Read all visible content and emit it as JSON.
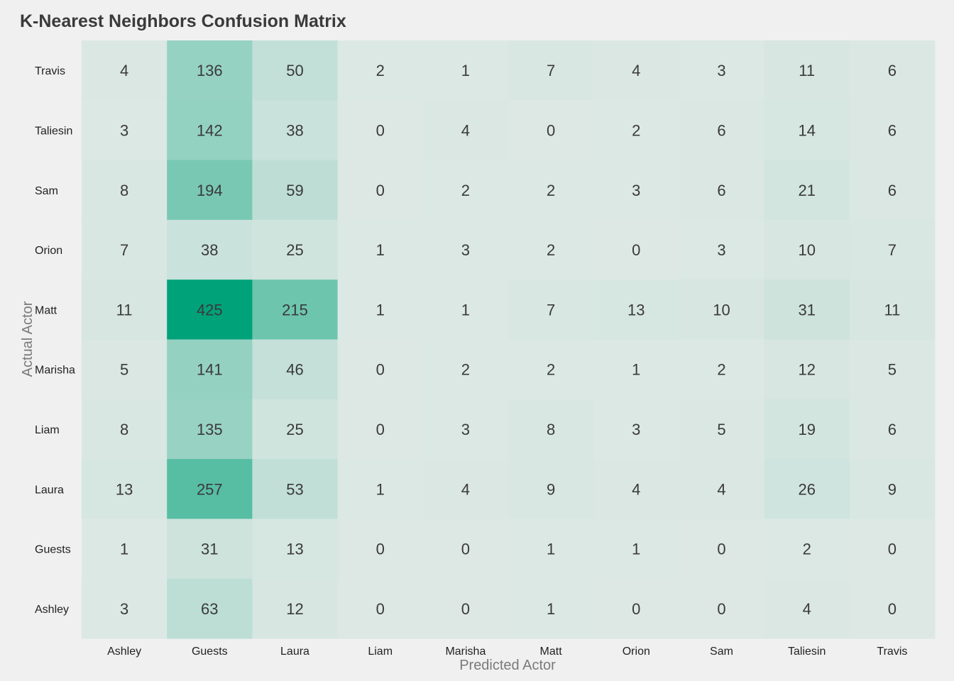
{
  "chart_data": {
    "type": "heatmap",
    "title": "K-Nearest Neighbors Confusion Matrix",
    "xlabel": "Predicted Actor",
    "ylabel": "Actual Actor",
    "x_categories": [
      "Ashley",
      "Guests",
      "Laura",
      "Liam",
      "Marisha",
      "Matt",
      "Orion",
      "Sam",
      "Taliesin",
      "Travis"
    ],
    "y_categories": [
      "Travis",
      "Taliesin",
      "Sam",
      "Orion",
      "Matt",
      "Marisha",
      "Liam",
      "Laura",
      "Guests",
      "Ashley"
    ],
    "values": [
      [
        4,
        136,
        50,
        2,
        1,
        7,
        4,
        3,
        11,
        6
      ],
      [
        3,
        142,
        38,
        0,
        4,
        0,
        2,
        6,
        14,
        6
      ],
      [
        8,
        194,
        59,
        0,
        2,
        2,
        3,
        6,
        21,
        6
      ],
      [
        7,
        38,
        25,
        1,
        3,
        2,
        0,
        3,
        10,
        7
      ],
      [
        11,
        425,
        215,
        1,
        1,
        7,
        13,
        10,
        31,
        11
      ],
      [
        5,
        141,
        46,
        0,
        2,
        2,
        1,
        2,
        12,
        5
      ],
      [
        8,
        135,
        25,
        0,
        3,
        8,
        3,
        5,
        19,
        6
      ],
      [
        13,
        257,
        53,
        1,
        4,
        9,
        4,
        4,
        26,
        9
      ],
      [
        1,
        31,
        13,
        0,
        0,
        1,
        1,
        0,
        2,
        0
      ],
      [
        3,
        63,
        12,
        0,
        0,
        1,
        0,
        0,
        4,
        0
      ]
    ],
    "color_low": "#dde8e4",
    "color_high": "#00a27a",
    "grid": false,
    "legend": "none"
  }
}
